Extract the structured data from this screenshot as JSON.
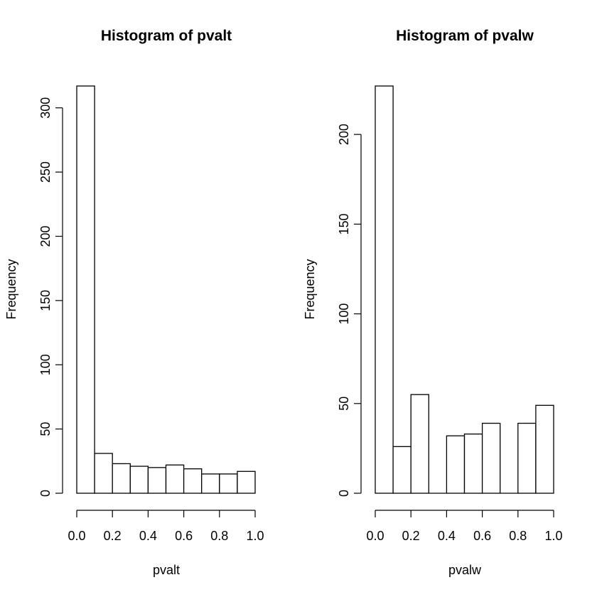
{
  "chart_data": [
    {
      "type": "bar",
      "title": "Histogram of pvalt",
      "xlabel": "pvalt",
      "ylabel": "Frequency",
      "xlim": [
        0,
        1
      ],
      "ylim": [
        0,
        317
      ],
      "bin_width": 0.1,
      "x": [
        0.0,
        0.1,
        0.2,
        0.3,
        0.4,
        0.5,
        0.6,
        0.7,
        0.8,
        0.9
      ],
      "values": [
        317,
        31,
        23,
        21,
        20,
        22,
        19,
        15,
        15,
        17
      ],
      "x_ticks": [
        "0.0",
        "0.2",
        "0.4",
        "0.6",
        "0.8",
        "1.0"
      ],
      "y_ticks": [
        "0",
        "50",
        "100",
        "150",
        "200",
        "250",
        "300"
      ],
      "grid": false
    },
    {
      "type": "bar",
      "title": "Histogram of pvalw",
      "xlabel": "pvalw",
      "ylabel": "Frequency",
      "xlim": [
        0,
        1
      ],
      "ylim": [
        0,
        227
      ],
      "bin_width": 0.1,
      "x": [
        0.0,
        0.1,
        0.2,
        0.3,
        0.4,
        0.5,
        0.6,
        0.7,
        0.8,
        0.9
      ],
      "values": [
        227,
        26,
        55,
        0,
        32,
        33,
        39,
        0,
        39,
        49
      ],
      "x_ticks": [
        "0.0",
        "0.2",
        "0.4",
        "0.6",
        "0.8",
        "1.0"
      ],
      "y_ticks": [
        "0",
        "50",
        "100",
        "150",
        "200"
      ],
      "grid": false
    }
  ]
}
